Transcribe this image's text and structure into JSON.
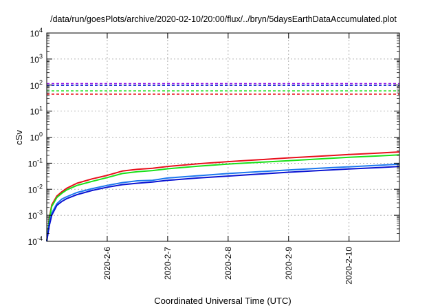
{
  "chart_data": {
    "type": "line",
    "title": "/data/run/goesPlots/archive/2020-02-10/20:00/flux/../bryn/5daysEarthDataAccumulated.plot",
    "xlabel": "Coordinated Universal Time (UTC)",
    "ylabel": "cSv",
    "x_type": "date",
    "xlim": [
      "2020-02-05T00:00",
      "2020-02-10T20:00"
    ],
    "x_ticks": [
      "2020-2-6",
      "2020-2-7",
      "2020-2-8",
      "2020-2-9",
      "2020-2-10"
    ],
    "y_scale": "log",
    "ylim": [
      0.0001,
      10000
    ],
    "y_ticks": [
      {
        "base": "10",
        "exp": "-4"
      },
      {
        "base": "10",
        "exp": "-3"
      },
      {
        "base": "10",
        "exp": "-2"
      },
      {
        "base": "10",
        "exp": "-1"
      },
      {
        "base": "10",
        "exp": "0"
      },
      {
        "base": "10",
        "exp": "1"
      },
      {
        "base": "10",
        "exp": "2"
      },
      {
        "base": "10",
        "exp": "3"
      },
      {
        "base": "10",
        "exp": "4"
      }
    ],
    "grid": true,
    "series": [
      {
        "color": "#e8101c",
        "style": "solid",
        "points": [
          [
            "2020-02-05T00:00",
            0.0001
          ],
          [
            "2020-02-05T01:00",
            0.0008
          ],
          [
            "2020-02-05T02:00",
            0.0025
          ],
          [
            "2020-02-05T04:00",
            0.0055
          ],
          [
            "2020-02-05T06:00",
            0.008
          ],
          [
            "2020-02-05T08:00",
            0.011
          ],
          [
            "2020-02-05T12:00",
            0.017
          ],
          [
            "2020-02-05T18:00",
            0.025
          ],
          [
            "2020-02-06T00:00",
            0.034
          ],
          [
            "2020-02-06T06:00",
            0.05
          ],
          [
            "2020-02-06T12:00",
            0.058
          ],
          [
            "2020-02-06T18:00",
            0.064
          ],
          [
            "2020-02-07T00:00",
            0.075
          ],
          [
            "2020-02-07T12:00",
            0.095
          ],
          [
            "2020-02-08T00:00",
            0.115
          ],
          [
            "2020-02-08T12:00",
            0.135
          ],
          [
            "2020-02-09T00:00",
            0.16
          ],
          [
            "2020-02-09T12:00",
            0.185
          ],
          [
            "2020-02-10T00:00",
            0.215
          ],
          [
            "2020-02-10T12:00",
            0.245
          ],
          [
            "2020-02-10T20:00",
            0.27
          ]
        ]
      },
      {
        "color": "#18e018",
        "style": "solid",
        "points": [
          [
            "2020-02-05T00:00",
            0.0001
          ],
          [
            "2020-02-05T01:00",
            0.0007
          ],
          [
            "2020-02-05T02:00",
            0.0022
          ],
          [
            "2020-02-05T04:00",
            0.0048
          ],
          [
            "2020-02-05T06:00",
            0.007
          ],
          [
            "2020-02-05T08:00",
            0.0095
          ],
          [
            "2020-02-05T12:00",
            0.014
          ],
          [
            "2020-02-05T18:00",
            0.02
          ],
          [
            "2020-02-06T00:00",
            0.028
          ],
          [
            "2020-02-06T06:00",
            0.04
          ],
          [
            "2020-02-06T12:00",
            0.047
          ],
          [
            "2020-02-06T18:00",
            0.052
          ],
          [
            "2020-02-07T00:00",
            0.061
          ],
          [
            "2020-02-07T12:00",
            0.077
          ],
          [
            "2020-02-08T00:00",
            0.093
          ],
          [
            "2020-02-08T12:00",
            0.108
          ],
          [
            "2020-02-09T00:00",
            0.125
          ],
          [
            "2020-02-09T12:00",
            0.145
          ],
          [
            "2020-02-10T00:00",
            0.168
          ],
          [
            "2020-02-10T12:00",
            0.19
          ],
          [
            "2020-02-10T20:00",
            0.21
          ]
        ]
      },
      {
        "color": "#1c78ee",
        "style": "solid",
        "points": [
          [
            "2020-02-05T00:00",
            0.0001
          ],
          [
            "2020-02-05T01:00",
            0.0005
          ],
          [
            "2020-02-05T02:00",
            0.0012
          ],
          [
            "2020-02-05T04:00",
            0.0028
          ],
          [
            "2020-02-05T06:00",
            0.0042
          ],
          [
            "2020-02-05T08:00",
            0.0052
          ],
          [
            "2020-02-05T12:00",
            0.0075
          ],
          [
            "2020-02-05T18:00",
            0.0105
          ],
          [
            "2020-02-06T00:00",
            0.014
          ],
          [
            "2020-02-06T06:00",
            0.018
          ],
          [
            "2020-02-06T12:00",
            0.021
          ],
          [
            "2020-02-06T18:00",
            0.022
          ],
          [
            "2020-02-07T00:00",
            0.027
          ],
          [
            "2020-02-07T12:00",
            0.033
          ],
          [
            "2020-02-08T00:00",
            0.04
          ],
          [
            "2020-02-08T12:00",
            0.047
          ],
          [
            "2020-02-09T00:00",
            0.055
          ],
          [
            "2020-02-09T12:00",
            0.064
          ],
          [
            "2020-02-10T00:00",
            0.073
          ],
          [
            "2020-02-10T12:00",
            0.083
          ],
          [
            "2020-02-10T20:00",
            0.092
          ]
        ]
      },
      {
        "color": "#0a14d2",
        "style": "solid",
        "points": [
          [
            "2020-02-05T00:00",
            0.0001
          ],
          [
            "2020-02-05T01:00",
            0.0004
          ],
          [
            "2020-02-05T02:00",
            0.001
          ],
          [
            "2020-02-05T04:00",
            0.0024
          ],
          [
            "2020-02-05T06:00",
            0.0034
          ],
          [
            "2020-02-05T08:00",
            0.0044
          ],
          [
            "2020-02-05T12:00",
            0.0062
          ],
          [
            "2020-02-05T18:00",
            0.009
          ],
          [
            "2020-02-06T00:00",
            0.012
          ],
          [
            "2020-02-06T06:00",
            0.015
          ],
          [
            "2020-02-06T12:00",
            0.017
          ],
          [
            "2020-02-06T18:00",
            0.019
          ],
          [
            "2020-02-07T00:00",
            0.022
          ],
          [
            "2020-02-07T12:00",
            0.027
          ],
          [
            "2020-02-08T00:00",
            0.032
          ],
          [
            "2020-02-08T12:00",
            0.038
          ],
          [
            "2020-02-09T00:00",
            0.045
          ],
          [
            "2020-02-09T12:00",
            0.052
          ],
          [
            "2020-02-10T00:00",
            0.06
          ],
          [
            "2020-02-10T12:00",
            0.068
          ],
          [
            "2020-02-10T20:00",
            0.075
          ]
        ]
      },
      {
        "color": "#9a1ee6",
        "style": "dashed",
        "points": [
          [
            "2020-02-05T00:00",
            115
          ],
          [
            "2020-02-10T20:00",
            115
          ]
        ]
      },
      {
        "color": "#0a14d2",
        "style": "dashed",
        "points": [
          [
            "2020-02-05T00:00",
            98
          ],
          [
            "2020-02-10T20:00",
            98
          ]
        ]
      },
      {
        "color": "#18e018",
        "style": "dashed",
        "points": [
          [
            "2020-02-05T00:00",
            60
          ],
          [
            "2020-02-10T20:00",
            60
          ]
        ]
      },
      {
        "color": "#e8101c",
        "style": "dashed",
        "points": [
          [
            "2020-02-05T00:00",
            45
          ],
          [
            "2020-02-10T20:00",
            45
          ]
        ]
      }
    ]
  }
}
